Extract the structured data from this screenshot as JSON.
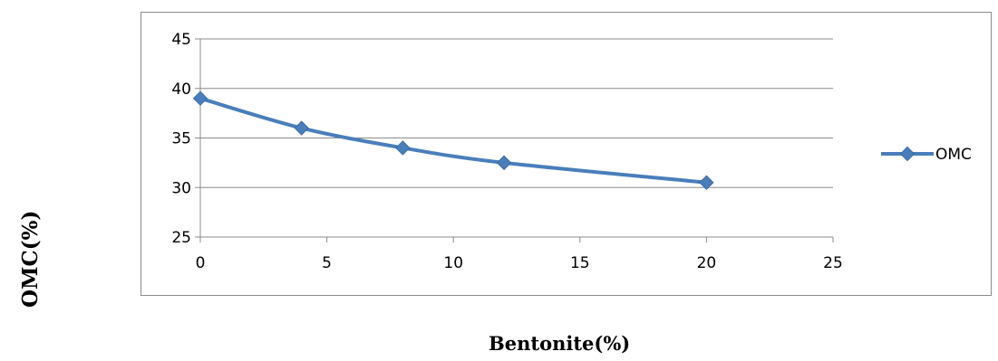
{
  "chart_data": {
    "type": "line",
    "title": "",
    "xlabel": "Bentonite(%)",
    "ylabel": "OMC(%)",
    "xlim": [
      0,
      25
    ],
    "ylim": [
      25,
      45
    ],
    "xticks": [
      0,
      5,
      10,
      15,
      20,
      25
    ],
    "yticks": [
      25,
      30,
      35,
      40,
      45
    ],
    "grid": "horizontal",
    "legend": "right",
    "series": [
      {
        "name": "OMC",
        "color": "#4a7ebb",
        "marker": "diamond",
        "x": [
          0,
          4,
          8,
          12,
          20
        ],
        "y": [
          39,
          36,
          34,
          32.5,
          30.5
        ]
      }
    ]
  }
}
